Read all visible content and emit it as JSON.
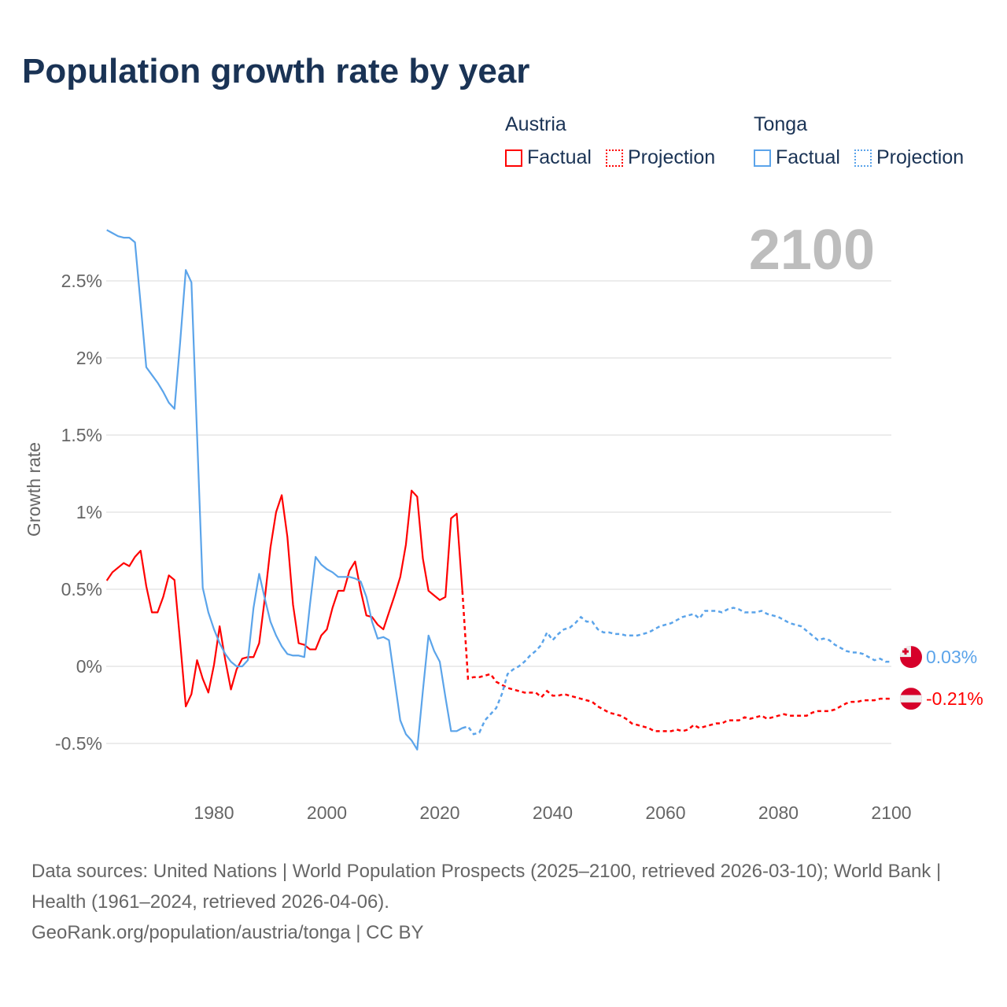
{
  "title": "Population growth rate by year",
  "legend": {
    "groups": [
      {
        "name": "Austria",
        "factual": "Factual",
        "projection": "Projection",
        "color": "#ff0000"
      },
      {
        "name": "Tonga",
        "factual": "Factual",
        "projection": "Projection",
        "color": "#5ba4ea"
      }
    ]
  },
  "chart_data": {
    "type": "line",
    "title": "Population growth rate by year",
    "ylabel": "Growth rate",
    "xlabel": "",
    "year_label": "2100",
    "xlim": [
      1961,
      2100
    ],
    "ylim": [
      -0.65,
      2.9
    ],
    "x_ticks": [
      1980,
      2000,
      2020,
      2040,
      2060,
      2080,
      2100
    ],
    "x_tick_labels": [
      "1980",
      "2000",
      "2020",
      "2040",
      "2060",
      "2080",
      "2100"
    ],
    "y_ticks": [
      -0.5,
      0,
      0.5,
      1,
      1.5,
      2,
      2.5
    ],
    "y_tick_labels": [
      "-0.5%",
      "0%",
      "0.5%",
      "1%",
      "1.5%",
      "2%",
      "2.5%"
    ],
    "grid": true,
    "series": [
      {
        "name": "Austria",
        "color": "#ff0000",
        "end_label": "-0.21%",
        "flag": "austria",
        "factual_start": 1961,
        "factual": [
          0.556,
          0.61,
          0.64,
          0.67,
          0.65,
          0.71,
          0.75,
          0.52,
          0.35,
          0.35,
          0.45,
          0.59,
          0.56,
          0.16,
          -0.26,
          -0.18,
          0.04,
          -0.08,
          -0.17,
          0.01,
          0.26,
          0.04,
          -0.15,
          -0.02,
          0.05,
          0.06,
          0.06,
          0.15,
          0.44,
          0.77,
          1.0,
          1.11,
          0.84,
          0.4,
          0.15,
          0.14,
          0.11,
          0.11,
          0.2,
          0.24,
          0.38,
          0.49,
          0.49,
          0.62,
          0.68,
          0.49,
          0.33,
          0.32,
          0.27,
          0.24,
          0.35,
          0.46,
          0.58,
          0.79,
          1.14,
          1.1,
          0.7,
          0.49,
          0.46,
          0.43,
          0.45,
          0.96,
          0.99,
          0.49
        ],
        "projection_start": 2025,
        "projection": [
          -0.08,
          -0.07,
          -0.07,
          -0.06,
          -0.05,
          -0.1,
          -0.12,
          -0.14,
          -0.15,
          -0.16,
          -0.17,
          -0.17,
          -0.17,
          -0.2,
          -0.16,
          -0.19,
          -0.19,
          -0.18,
          -0.19,
          -0.2,
          -0.21,
          -0.22,
          -0.23,
          -0.26,
          -0.28,
          -0.3,
          -0.31,
          -0.32,
          -0.34,
          -0.37,
          -0.38,
          -0.39,
          -0.4,
          -0.42,
          -0.42,
          -0.42,
          -0.42,
          -0.41,
          -0.42,
          -0.41,
          -0.38,
          -0.4,
          -0.39,
          -0.38,
          -0.37,
          -0.37,
          -0.35,
          -0.35,
          -0.35,
          -0.33,
          -0.34,
          -0.33,
          -0.32,
          -0.34,
          -0.33,
          -0.32,
          -0.31,
          -0.32,
          -0.32,
          -0.32,
          -0.32,
          -0.3,
          -0.29,
          -0.29,
          -0.29,
          -0.28,
          -0.26,
          -0.24,
          -0.23,
          -0.23,
          -0.22,
          -0.22,
          -0.22,
          -0.21,
          -0.21,
          -0.21
        ]
      },
      {
        "name": "Tonga",
        "color": "#5ba4ea",
        "end_label": "0.03%",
        "flag": "tonga",
        "factual_start": 1961,
        "factual": [
          2.83,
          2.81,
          2.79,
          2.78,
          2.78,
          2.75,
          2.35,
          1.94,
          1.89,
          1.84,
          1.78,
          1.71,
          1.67,
          2.1,
          2.57,
          2.49,
          1.5,
          0.51,
          0.35,
          0.24,
          0.15,
          0.08,
          0.03,
          0.0,
          0.0,
          0.04,
          0.38,
          0.6,
          0.44,
          0.29,
          0.2,
          0.13,
          0.08,
          0.07,
          0.07,
          0.06,
          0.4,
          0.71,
          0.66,
          0.63,
          0.61,
          0.58,
          0.58,
          0.58,
          0.57,
          0.55,
          0.45,
          0.29,
          0.18,
          0.19,
          0.17,
          -0.09,
          -0.35,
          -0.44,
          -0.48,
          -0.54,
          -0.16,
          0.2,
          0.1,
          0.03,
          -0.2,
          -0.42,
          -0.42,
          -0.4
        ],
        "projection_start": 2025,
        "projection": [
          -0.39,
          -0.44,
          -0.43,
          -0.35,
          -0.31,
          -0.27,
          -0.18,
          -0.05,
          -0.02,
          0.0,
          0.03,
          0.07,
          0.1,
          0.14,
          0.22,
          0.17,
          0.21,
          0.24,
          0.25,
          0.28,
          0.32,
          0.29,
          0.29,
          0.24,
          0.22,
          0.22,
          0.21,
          0.21,
          0.2,
          0.2,
          0.2,
          0.21,
          0.22,
          0.24,
          0.26,
          0.27,
          0.28,
          0.3,
          0.32,
          0.33,
          0.34,
          0.31,
          0.36,
          0.36,
          0.36,
          0.35,
          0.37,
          0.38,
          0.37,
          0.35,
          0.35,
          0.35,
          0.36,
          0.34,
          0.33,
          0.32,
          0.3,
          0.28,
          0.27,
          0.26,
          0.23,
          0.2,
          0.17,
          0.18,
          0.17,
          0.14,
          0.12,
          0.1,
          0.09,
          0.09,
          0.08,
          0.06,
          0.04,
          0.05,
          0.03,
          0.03
        ]
      }
    ]
  },
  "footer": {
    "sources": "Data sources: United Nations | World Population Prospects (2025–2100, retrieved 2026-03-10); World Bank | Health (1961–2024, retrieved 2026-04-06).",
    "credit": "GeoRank.org/population/austria/tonga | CC BY"
  }
}
